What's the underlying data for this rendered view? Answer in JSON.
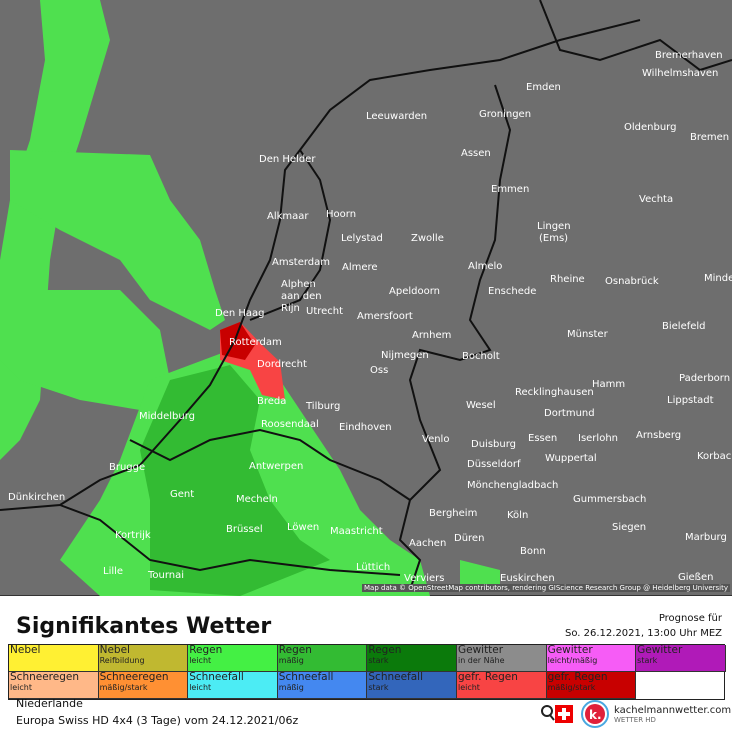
{
  "header": {
    "title": "Signifikantes Wetter",
    "forecast_label": "Prognose für",
    "forecast_time": "So. 26.12.2021, 13:00 Uhr MEZ"
  },
  "legend": [
    {
      "label": "Nebel",
      "sub": "",
      "color": "#fff033"
    },
    {
      "label": "Nebel",
      "sub": "Reifbildung",
      "color": "#c0b830"
    },
    {
      "label": "Regen",
      "sub": "leicht",
      "color": "#44f044"
    },
    {
      "label": "Regen",
      "sub": "mäßig",
      "color": "#33bb33"
    },
    {
      "label": "Regen",
      "sub": "stark",
      "color": "#0b7a0b"
    },
    {
      "label": "Gewitter",
      "sub": "in der Nähe",
      "color": "#8c8c8c"
    },
    {
      "label": "Gewitter",
      "sub": "leicht/mäßig",
      "color": "#f65cf6"
    },
    {
      "label": "Gewitter",
      "sub": "stark",
      "color": "#b01ab8"
    },
    {
      "label": "Schneeregen",
      "sub": "leicht",
      "color": "#ffb888"
    },
    {
      "label": "Schneeregen",
      "sub": "mäßig/stark",
      "color": "#ff9033"
    },
    {
      "label": "Schneefall",
      "sub": "leicht",
      "color": "#4cecf4"
    },
    {
      "label": "Schneefall",
      "sub": "mäßig",
      "color": "#4488f0"
    },
    {
      "label": "Schneefall",
      "sub": "stark",
      "color": "#3366bb"
    },
    {
      "label": "gefr. Regen",
      "sub": "leicht",
      "color": "#f84444"
    },
    {
      "label": "gefr. Regen",
      "sub": "mäßig/stark",
      "color": "#c80000"
    }
  ],
  "footer": {
    "region": "Niederlande",
    "model": "Europa Swiss HD 4x4 (3 Tage) vom  24.12.2021/06z",
    "brand": "kachelmannwetter.com",
    "brand_sub": "WETTER HD",
    "logo_letter": "k."
  },
  "map": {
    "attribution": "Map data © OpenStreetMap contributors, rendering GIScience Research Group @ Heidelberg University",
    "background_color": "#6e6e6e",
    "cities": [
      "Bremerhaven",
      "Wilhelmshaven",
      "Emden",
      "Leeuwarden",
      "Groningen",
      "Oldenburg",
      "Bremen",
      "Den Helder",
      "Assen",
      "Emmen",
      "Vechta",
      "Alkmaar",
      "Hoorn",
      "Lelystad",
      "Zwolle",
      "Lingen",
      "(Ems)",
      "Amsterdam",
      "Almere",
      "Almelo",
      "Rheine",
      "Osnabrück",
      "Minden",
      "Alphen",
      "aan den",
      "Rijn",
      "Utrecht",
      "Apeldoorn",
      "Enschede",
      "Amersfoort",
      "Den Haag",
      "Rotterdam",
      "Arnhem",
      "Münster",
      "Bielefeld",
      "Dordrecht",
      "Nijmegen",
      "Bocholt",
      "Oss",
      "Paderborn",
      "Hamm",
      "Recklinghausen",
      "Lippstadt",
      "Breda",
      "Tilburg",
      "Wesel",
      "Dortmund",
      "Middelburg",
      "Roosendaal",
      "Eindhoven",
      "Venlo",
      "Duisburg",
      "Essen",
      "Iserlohn",
      "Arnsberg",
      "Brugge",
      "Antwerpen",
      "Düsseldorf",
      "Wuppertal",
      "Korbach",
      "Gent",
      "Mönchengladbach",
      "Gummersbach",
      "Dünkirchen",
      "Mecheln",
      "Bergheim",
      "Köln",
      "Kortrijk",
      "Brüssel",
      "Löwen",
      "Maastricht",
      "Siegen",
      "Düren",
      "Marburg",
      "Aachen",
      "Bonn",
      "Lille",
      "Tournai",
      "Lüttich",
      "Verviers",
      "Euskirchen",
      "Gießen"
    ]
  }
}
